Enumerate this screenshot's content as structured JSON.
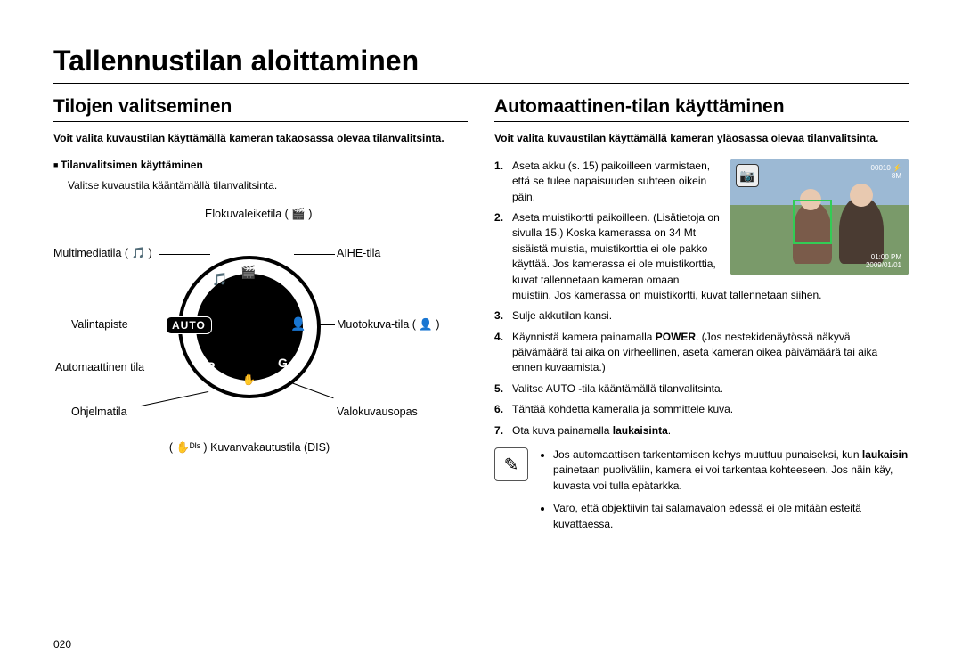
{
  "page": {
    "title": "Tallennustilan aloittaminen",
    "number": "020"
  },
  "left": {
    "heading": "Tilojen valitseminen",
    "intro": "Voit valita kuvaustilan käyttämällä kameran takaosassa olevaa tilanvalitsinta.",
    "sub_heading": "Tilanvalitsimen käyttäminen",
    "sub_body": "Valitse kuvaustila kääntämällä tilanvalitsinta.",
    "dial": {
      "center_label": "AUTO",
      "labels": {
        "top": "Elokuvaleiketila ( 🎬 )",
        "top_right": "AIHE-tila",
        "right": "Muotokuva-tila ( 👤 )",
        "bottom_right": "Valokuvausopas",
        "bottom": "( ✋ᴰᴵˢ ) Kuvanvakautustila (DIS)",
        "bottom_left": "Ohjelmatila",
        "left_lower": "Automaattinen tila",
        "left": "Valintapiste",
        "top_left": "Multimediatila ( 🎵 )"
      },
      "icons": {
        "scene": "SCENE",
        "portrait": "👤",
        "guide": "G",
        "dis": "✋",
        "program": "P",
        "movie": "🎬",
        "multimedia": "🎵"
      }
    }
  },
  "right": {
    "heading": "Automaattinen-tilan käyttäminen",
    "intro": "Voit valita kuvaustilan käyttämällä kameran yläosassa olevaa tilanvalitsinta.",
    "preview": {
      "camera_icon": "📷",
      "counter": "00010",
      "flash": "⚡",
      "resolution": "8M",
      "time": "01:00 PM",
      "date": "2009/01/01"
    },
    "steps": [
      "Aseta akku (s. 15) paikoilleen varmistaen, että se tulee napaisuuden suhteen oikein päin.",
      "Aseta muistikortti paikoilleen. (Lisätietoja on sivulla 15.) Koska kamerassa on 34 Mt sisäistä muistia, muistikorttia ei ole pakko käyttää. Jos kamerassa ei ole muistikorttia, kuvat tallennetaan kameran omaan muistiin. Jos kamerassa on muistikortti, kuvat tallennetaan siihen.",
      "Sulje akkutilan kansi.",
      "Käynnistä kamera painamalla <b>POWER</b>. (Jos nestekidenäytössä näkyvä päivämäärä tai aika on virheellinen, aseta kameran oikea päivämäärä tai aika ennen kuvaamista.)",
      "Valitse AUTO -tila kääntämällä tilanvalitsinta.",
      "Tähtää kohdetta kameralla ja sommittele kuva.",
      "Ota kuva painamalla <b>laukaisinta</b>."
    ],
    "note_icon": "✎",
    "notes": [
      "Jos automaattisen tarkentamisen kehys muuttuu punaiseksi, kun <b>laukaisin</b> painetaan puoliväliin, kamera ei voi tarkentaa kohteeseen. Jos näin käy, kuvasta voi tulla epätarkka.",
      "Varo, että objektiivin tai salamavalon edessä ei ole mitään esteitä kuvattaessa."
    ]
  }
}
